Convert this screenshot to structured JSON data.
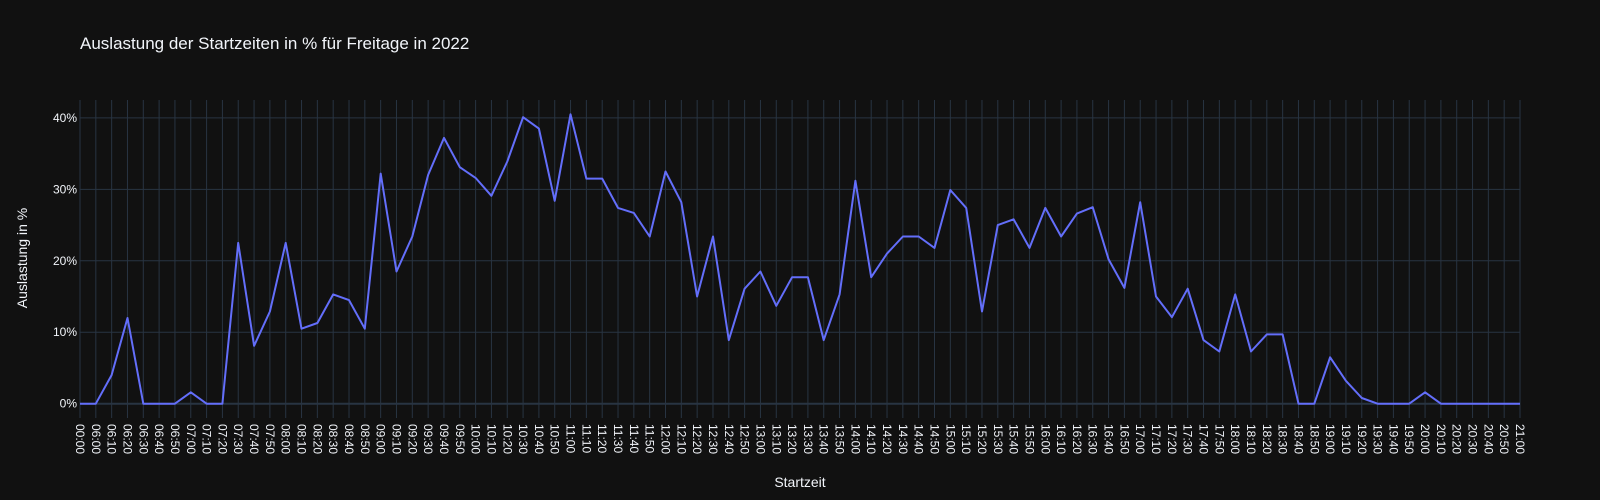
{
  "chart_data": {
    "type": "line",
    "title": "Auslastung der Startzeiten in % für Freitage in 2022",
    "xlabel": "Startzeit",
    "ylabel": "Auslastung in %",
    "ylim": [
      -2,
      42.5
    ],
    "yticks": [
      0,
      10,
      20,
      30,
      40
    ],
    "ytick_suffix": "%",
    "line_color": "#636efa",
    "grid": true,
    "x": [
      "00:00",
      "06:00",
      "06:10",
      "06:20",
      "06:30",
      "06:40",
      "06:50",
      "07:00",
      "07:10",
      "07:20",
      "07:30",
      "07:40",
      "07:50",
      "08:00",
      "08:10",
      "08:20",
      "08:30",
      "08:40",
      "08:50",
      "09:00",
      "09:10",
      "09:20",
      "09:30",
      "09:40",
      "09:50",
      "10:00",
      "10:10",
      "10:20",
      "10:30",
      "10:40",
      "10:50",
      "11:00",
      "11:10",
      "11:20",
      "11:30",
      "11:40",
      "11:50",
      "12:00",
      "12:10",
      "12:20",
      "12:30",
      "12:40",
      "12:50",
      "13:00",
      "13:10",
      "13:20",
      "13:30",
      "13:40",
      "13:50",
      "14:00",
      "14:10",
      "14:20",
      "14:30",
      "14:40",
      "14:50",
      "15:00",
      "15:10",
      "15:20",
      "15:30",
      "15:40",
      "15:50",
      "16:00",
      "16:10",
      "16:20",
      "16:30",
      "16:40",
      "16:50",
      "17:00",
      "17:10",
      "17:20",
      "17:30",
      "17:40",
      "17:50",
      "18:00",
      "18:10",
      "18:20",
      "18:30",
      "18:40",
      "18:50",
      "19:00",
      "19:10",
      "19:20",
      "19:30",
      "19:40",
      "19:50",
      "20:00",
      "20:10",
      "20:20",
      "20:30",
      "20:40",
      "20:50",
      "21:00"
    ],
    "values": [
      0,
      0,
      4,
      12,
      0,
      0,
      0,
      1.6,
      0,
      0,
      22.5,
      8.1,
      12.9,
      22.5,
      10.5,
      11.3,
      15.3,
      14.5,
      10.5,
      32.2,
      18.5,
      23.4,
      32,
      37.2,
      33.1,
      31.6,
      29.1,
      33.9,
      40.1,
      38.5,
      28.4,
      40.5,
      31.5,
      31.5,
      27.4,
      26.7,
      23.4,
      32.5,
      28.2,
      15,
      23.4,
      8.9,
      16.1,
      18.5,
      13.7,
      17.7,
      17.7,
      8.9,
      15.3,
      31.2,
      17.7,
      21,
      23.4,
      23.4,
      21.8,
      29.9,
      27.4,
      12.9,
      25,
      25.8,
      21.8,
      27.4,
      23.4,
      26.6,
      27.5,
      20.2,
      16.2,
      28.2,
      15,
      12.1,
      16.1,
      8.9,
      7.3,
      15.3,
      7.3,
      9.7,
      9.7,
      0,
      0,
      6.5,
      3.2,
      0.8,
      0,
      0,
      0,
      1.6,
      0,
      0,
      0,
      0,
      0,
      0
    ]
  }
}
